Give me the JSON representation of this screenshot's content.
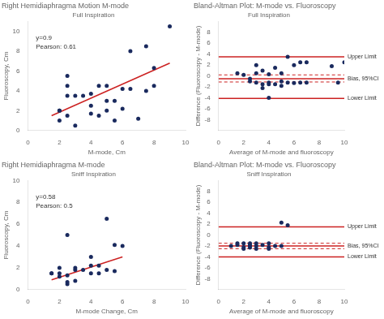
{
  "chart_data": [
    {
      "type": "scatter",
      "title": "Right Hemidiaphragma Motion M-mode",
      "subtitle": "Full Inspiration",
      "annotations": [
        "y=0.9",
        "Pearson: 0.61"
      ],
      "x_label": "M-mode, Cm",
      "y_label": "Fluoroscopy, Cm",
      "xlim": [
        0,
        10
      ],
      "xticks": [
        0,
        2,
        4,
        6,
        8,
        10
      ],
      "ylim": [
        0,
        11
      ],
      "yticks": [
        0,
        2,
        4,
        6,
        8,
        10
      ],
      "grid": false,
      "series": [
        {
          "type": "scatter",
          "color": "#1a2a5e",
          "x": [
            2.0,
            2.0,
            2.0,
            2.5,
            2.5,
            2.5,
            2.5,
            3.0,
            3.0,
            3.5,
            4.0,
            4.0,
            4.0,
            4.5,
            4.5,
            5.0,
            5.0,
            5.0,
            5.5,
            5.5,
            6.0,
            6.0,
            6.5,
            6.5,
            7.0,
            7.5,
            7.5,
            8.0,
            8.0,
            9.0
          ],
          "values": [
            1.0,
            2.0,
            2.0,
            1.5,
            3.5,
            4.5,
            5.5,
            0.5,
            3.5,
            3.5,
            1.7,
            2.5,
            3.7,
            1.5,
            4.5,
            2.0,
            3.0,
            4.5,
            1.0,
            3.0,
            2.2,
            4.2,
            4.2,
            8.0,
            1.2,
            4.0,
            8.5,
            6.3,
            4.5,
            10.5
          ]
        },
        {
          "type": "line",
          "color": "#cc2222",
          "x": [
            1.5,
            9.0
          ],
          "values": [
            1.5,
            6.8
          ]
        }
      ]
    },
    {
      "type": "scatter",
      "title": "Bland-Altman Plot: M-mode vs. Fluoroscopy",
      "subtitle": "Full Inspiration",
      "x_label": "Average of M-mode and fluoroscopy",
      "y_label": "Difference (Fluoroscopy - M-mode)",
      "xlim": [
        0,
        10
      ],
      "xticks": [
        0,
        2,
        4,
        6,
        8,
        10
      ],
      "ylim": [
        -10,
        10
      ],
      "yticks": [
        -8,
        -6,
        -4,
        -2,
        0,
        2,
        4,
        6,
        8
      ],
      "grid": false,
      "series": [
        {
          "type": "scatter",
          "color": "#1a2a5e",
          "x": [
            1.5,
            2.0,
            2.5,
            2.5,
            3.0,
            3.0,
            3.0,
            3.5,
            3.5,
            3.5,
            4.0,
            4.0,
            4.0,
            4.0,
            4.5,
            4.5,
            5.0,
            5.0,
            5.0,
            5.5,
            5.5,
            6.0,
            6.0,
            6.5,
            6.5,
            7.0,
            7.0,
            9.0,
            9.5,
            10.0
          ],
          "values": [
            0.5,
            0.2,
            -0.5,
            -1.0,
            2.0,
            0.5,
            -1.2,
            1.0,
            -1.5,
            -2.2,
            0.3,
            -1.2,
            -1.5,
            -4.0,
            -1.5,
            1.5,
            0.5,
            -1.0,
            -1.8,
            -1.2,
            3.5,
            2.0,
            -1.3,
            2.5,
            -1.2,
            2.5,
            -1.2,
            1.8,
            -1.2,
            2.5
          ]
        }
      ],
      "hlines": [
        {
          "value": 3.5,
          "label": "Upper Limit",
          "color": "#cc2222",
          "line_style": "solid"
        },
        {
          "value": -4.1,
          "label": "Lower Limit",
          "color": "#cc2222",
          "line_style": "solid"
        },
        {
          "value": -0.5,
          "label": "Bias, 95%CI",
          "color": "#cc2222",
          "line_style": "solid"
        },
        {
          "value": 0.2,
          "color": "#cc2222",
          "line_style": "dashed"
        },
        {
          "value": -1.1,
          "color": "#cc2222",
          "line_style": "dashed"
        }
      ]
    },
    {
      "type": "scatter",
      "title": "Right Hemidiaphragma M-mode",
      "subtitle": "Sniff Inspiration",
      "annotations": [
        "y=0.58",
        "Pearson: 0.5"
      ],
      "x_label": "M-mode Change, Cm",
      "y_label": "Fluoroscopy, Cm",
      "xlim": [
        0,
        10
      ],
      "xticks": [
        0,
        2,
        4,
        6,
        8,
        10
      ],
      "ylim": [
        0,
        10
      ],
      "yticks": [
        0,
        2,
        4,
        6,
        8,
        10
      ],
      "grid": false,
      "series": [
        {
          "type": "scatter",
          "color": "#1a2a5e",
          "x": [
            1.5,
            1.5,
            2.0,
            2.0,
            2.0,
            2.5,
            2.5,
            2.5,
            2.5,
            3.0,
            3.0,
            3.0,
            3.5,
            4.0,
            4.0,
            4.0,
            4.5,
            4.5,
            5.0,
            5.0,
            5.5,
            5.5,
            6.0
          ],
          "values": [
            1.5,
            1.5,
            1.2,
            1.5,
            2.0,
            0.5,
            0.7,
            1.3,
            5.0,
            0.8,
            1.8,
            2.0,
            1.8,
            1.5,
            2.2,
            3.0,
            1.5,
            2.2,
            1.8,
            6.5,
            1.7,
            4.1,
            4.0
          ]
        },
        {
          "type": "line",
          "color": "#cc2222",
          "x": [
            1.5,
            6.0
          ],
          "values": [
            0.9,
            3.0
          ]
        }
      ]
    },
    {
      "type": "scatter",
      "title": "Bland-Altman Plot: M-mode vs. Fluoroscopy",
      "subtitle": "Sniff Inspiration",
      "x_label": "Average of M-mode and fluoroscopy",
      "y_label": "Difference (Fluoroscopy - M-mode)",
      "xlim": [
        0,
        10
      ],
      "xticks": [
        0,
        2,
        4,
        6,
        8,
        10
      ],
      "ylim": [
        -10,
        10
      ],
      "yticks": [
        -8,
        -6,
        -4,
        -2,
        0,
        2,
        4,
        6,
        8
      ],
      "grid": false,
      "series": [
        {
          "type": "scatter",
          "color": "#1a2a5e",
          "x": [
            1.0,
            1.5,
            1.5,
            2.0,
            2.0,
            2.0,
            2.5,
            2.5,
            2.5,
            2.5,
            3.0,
            3.0,
            3.0,
            3.5,
            4.0,
            4.0,
            4.0,
            4.5,
            5.0,
            5.0,
            5.5
          ],
          "values": [
            -2.0,
            -1.5,
            -1.8,
            -1.5,
            -2.2,
            -2.5,
            -1.5,
            -2.0,
            -1.8,
            -2.3,
            -1.5,
            -2.0,
            -2.5,
            -1.8,
            -1.5,
            -2.2,
            -2.5,
            -2.0,
            2.3,
            -2.0,
            1.8
          ]
        }
      ],
      "hlines": [
        {
          "value": 1.5,
          "label": "Upper Limit",
          "color": "#cc2222",
          "line_style": "solid"
        },
        {
          "value": -4.0,
          "label": "Lower Limit",
          "color": "#cc2222",
          "line_style": "solid"
        },
        {
          "value": -2.0,
          "label": "Bias, 95%CI",
          "color": "#cc2222",
          "line_style": "solid"
        },
        {
          "value": -1.5,
          "color": "#cc2222",
          "line_style": "dashed"
        },
        {
          "value": -2.5,
          "color": "#cc2222",
          "line_style": "dashed"
        }
      ]
    }
  ]
}
